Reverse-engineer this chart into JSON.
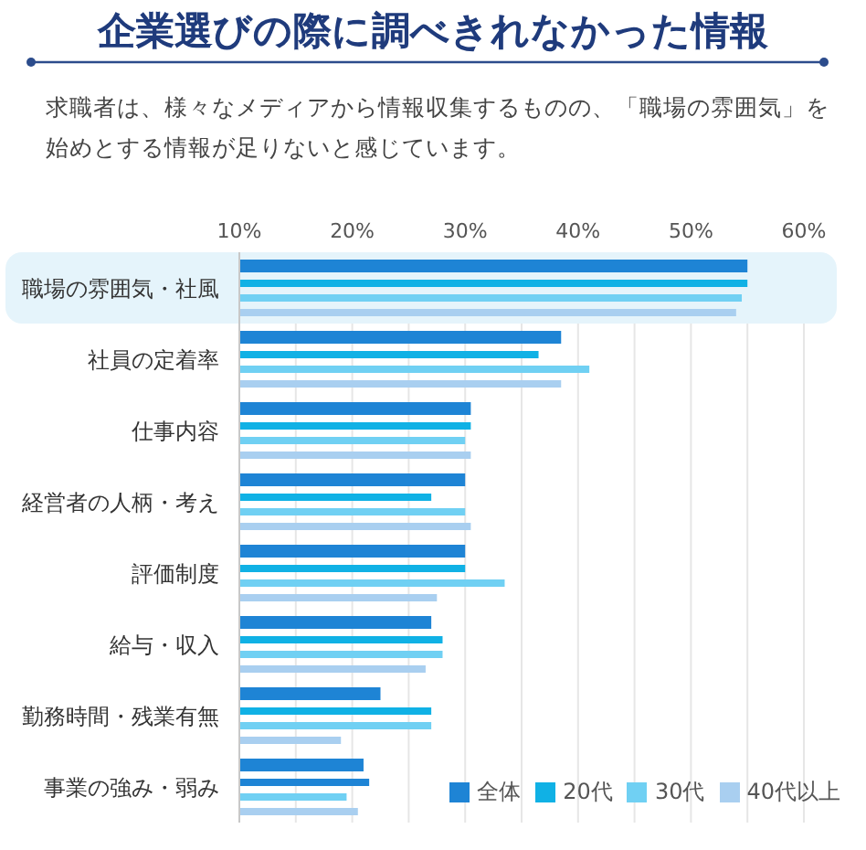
{
  "chart_data": {
    "type": "bar",
    "orientation": "horizontal",
    "title": "企業選びの際に調べきれなかった情報",
    "subtitle": "求職者は、様々なメディアから情報収集するものの、「職場の雰囲気」を始めとする情報が足りないと感じています。",
    "categories": [
      "職場の雰囲気・社風",
      "社員の定着率",
      "仕事内容",
      "経営者の人柄・考え",
      "評価制度",
      "給与・収入",
      "勤務時間・残業有無",
      "事業の強み・弱み"
    ],
    "series": [
      {
        "name": "全体",
        "color": "#1e84d5",
        "values": [
          55,
          38.5,
          30.5,
          30,
          30,
          27,
          22.5,
          21
        ]
      },
      {
        "name": "20代",
        "color": "#10b1e5",
        "values": [
          55,
          36.5,
          30.5,
          27,
          30,
          28,
          27,
          21.5
        ],
        "colors": [
          "#10b1e5",
          "#10b1e5",
          "#10b1e5",
          "#10b1e5",
          "#10b1e5",
          "#10b1e5",
          "#10b1e5",
          "#1e84d5"
        ]
      },
      {
        "name": "30代",
        "color": "#70d0f3",
        "values": [
          54.5,
          41,
          30,
          30,
          33.5,
          28,
          27,
          19.5
        ]
      },
      {
        "name": "40代以上",
        "color": "#a9cff0",
        "values": [
          54,
          38.5,
          30.5,
          30.5,
          27.5,
          26.5,
          19,
          20.5
        ]
      }
    ],
    "xlim": [
      10,
      60
    ],
    "xticks": [
      {
        "value": 10,
        "label": "10%"
      },
      {
        "value": 15,
        "label": null
      },
      {
        "value": 20,
        "label": "20%"
      },
      {
        "value": 25,
        "label": null
      },
      {
        "value": 30,
        "label": "30%"
      },
      {
        "value": 35,
        "label": null
      },
      {
        "value": 40,
        "label": "40%"
      },
      {
        "value": 45,
        "label": null
      },
      {
        "value": 50,
        "label": "50%"
      },
      {
        "value": 55,
        "label": null
      },
      {
        "value": 60,
        "label": "60%"
      }
    ],
    "grid": "x",
    "legend": "bottom right",
    "bands": [
      {
        "axis": "y",
        "from": "職場の雰囲気・社風",
        "to": "職場の雰囲気・社風",
        "color": "#e5f4fb"
      }
    ]
  }
}
